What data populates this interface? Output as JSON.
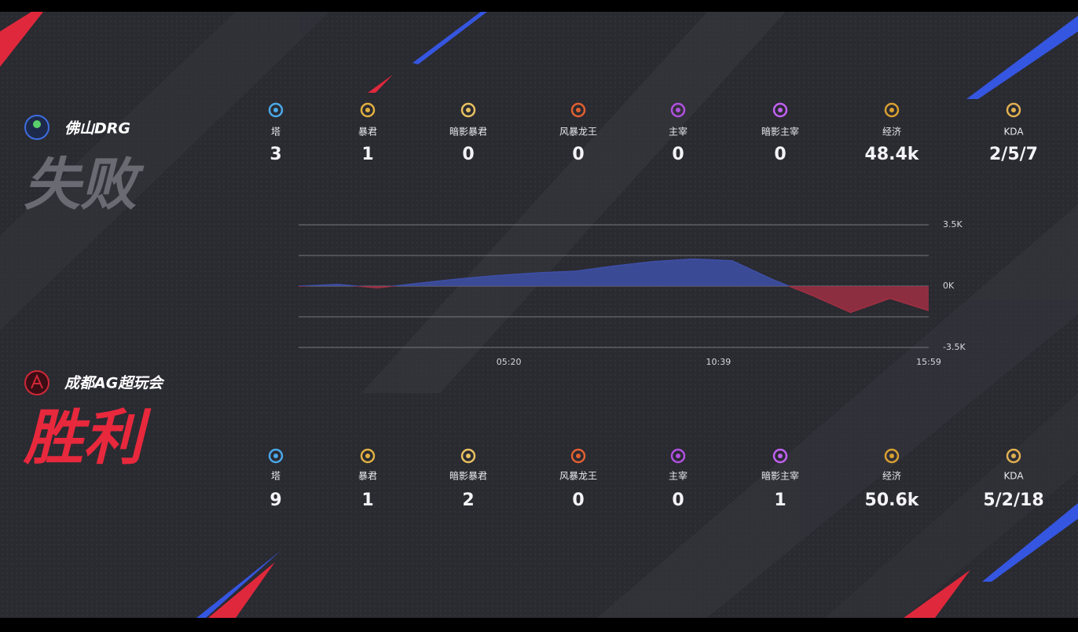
{
  "teams": [
    {
      "name": "佛山DRG",
      "result": "失败",
      "stats": [
        {
          "label": "塔",
          "value": "3"
        },
        {
          "label": "暴君",
          "value": "1"
        },
        {
          "label": "暗影暴君",
          "value": "0"
        },
        {
          "label": "风暴龙王",
          "value": "0"
        },
        {
          "label": "主宰",
          "value": "0"
        },
        {
          "label": "暗影主宰",
          "value": "0"
        },
        {
          "label": "经济",
          "value": "48.4k"
        },
        {
          "label": "KDA",
          "value": "2/5/7"
        }
      ]
    },
    {
      "name": "成都AG超玩会",
      "result": "胜利",
      "stats": [
        {
          "label": "塔",
          "value": "9"
        },
        {
          "label": "暴君",
          "value": "1"
        },
        {
          "label": "暗影暴君",
          "value": "2"
        },
        {
          "label": "风暴龙王",
          "value": "0"
        },
        {
          "label": "主宰",
          "value": "0"
        },
        {
          "label": "暗影主宰",
          "value": "1"
        },
        {
          "label": "经济",
          "value": "50.6k"
        },
        {
          "label": "KDA",
          "value": "5/2/18"
        }
      ]
    }
  ],
  "chart_data": {
    "type": "area",
    "x": [
      0,
      60,
      120,
      180,
      240,
      300,
      360,
      420,
      480,
      540,
      600,
      660,
      720,
      780,
      840,
      900,
      959
    ],
    "values": [
      0,
      0.1,
      -0.1,
      0.15,
      0.4,
      0.6,
      0.75,
      0.85,
      1.15,
      1.4,
      1.55,
      1.45,
      0.4,
      -0.5,
      -1.5,
      -0.7,
      -1.4
    ],
    "positive_color": "#3d4fa6",
    "negative_color": "#9e2f42",
    "xlim": [
      0,
      959
    ],
    "xticks": [
      {
        "value": 320,
        "label": "05:20"
      },
      {
        "value": 639,
        "label": "10:39"
      },
      {
        "value": 959,
        "label": "15:59"
      }
    ],
    "ylim": [
      -3.5,
      3.5
    ],
    "yticks": [
      {
        "value": 3.5,
        "label": "3.5K"
      },
      {
        "value": 1.75,
        "label": null
      },
      {
        "value": 0,
        "label": "0K"
      },
      {
        "value": -1.75,
        "label": null
      },
      {
        "value": -3.5,
        "label": "-3.5K"
      }
    ],
    "grid": true
  }
}
